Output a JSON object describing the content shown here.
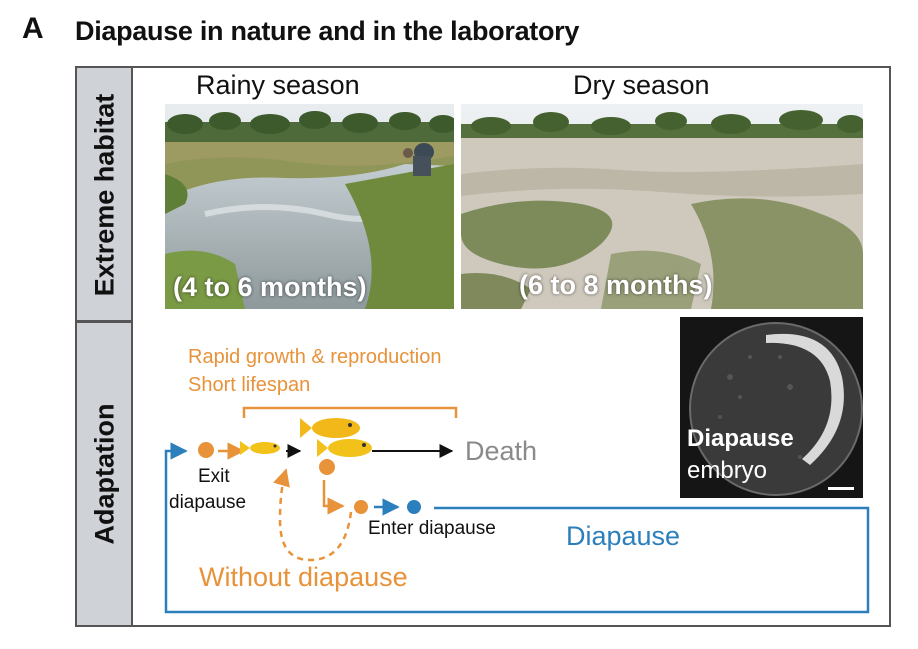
{
  "panel": {
    "letter": "A",
    "title": "Diapause in nature and in the laboratory"
  },
  "sidebar": {
    "top_label": "Extreme habitat",
    "bottom_label": "Adaptation"
  },
  "seasons": [
    {
      "name": "Rainy season",
      "duration": "(4 to 6 months)"
    },
    {
      "name": "Dry season",
      "duration": "(6 to 8 months)"
    }
  ],
  "lifecycle": {
    "growth_line1": "Rapid growth & reproduction",
    "growth_line2": "Short lifespan",
    "exit_line1": "Exit",
    "exit_line2": "diapause",
    "enter": "Enter diapause",
    "death": "Death",
    "without": "Without diapause",
    "diapause": "Diapause"
  },
  "embryo": {
    "line1": "Diapause",
    "line2": "embryo"
  },
  "colors": {
    "orange": "#e8923a",
    "blue": "#2c7fbd",
    "death_gray": "#8a8a8a",
    "sidebar": "#cfd2d6"
  }
}
